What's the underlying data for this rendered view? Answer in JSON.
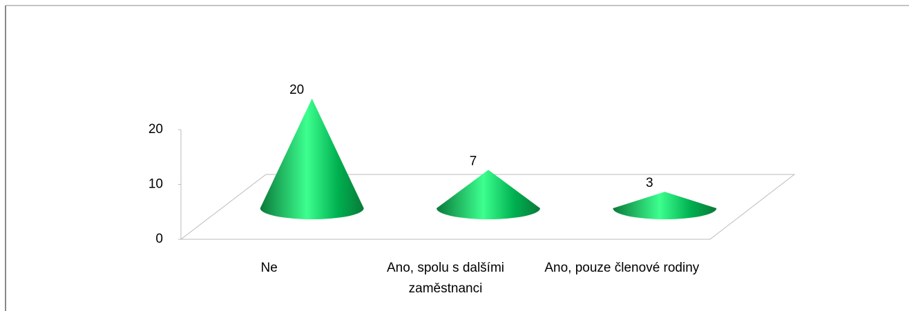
{
  "chart_data": {
    "type": "cone",
    "categories": [
      "Ne",
      "Ano, spolu s dalšími zaměstnanci",
      "Ano, pouze členové rodiny"
    ],
    "values": [
      20,
      7,
      3
    ],
    "color": "#00b050",
    "ylim": [
      0,
      20
    ],
    "yticks": [
      0,
      10,
      20
    ]
  }
}
